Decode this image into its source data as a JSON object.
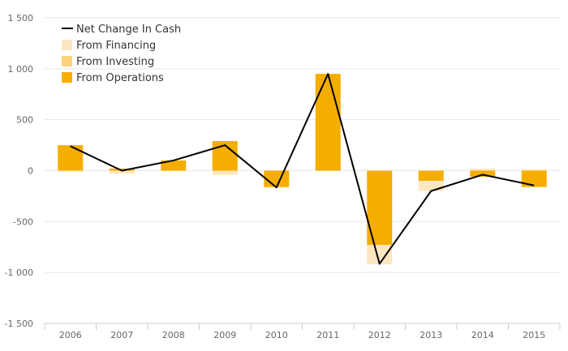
{
  "chart_data": {
    "type": "bar+line",
    "title": "",
    "categories": [
      "2006",
      "2007",
      "2008",
      "2009",
      "2010",
      "2011",
      "2012",
      "2013",
      "2014",
      "2015"
    ],
    "ylim": [
      -1500,
      1500
    ],
    "yticks": [
      {
        "value": 1500,
        "label": "1 500"
      },
      {
        "value": 1000,
        "label": "1 000"
      },
      {
        "value": 500,
        "label": "500"
      },
      {
        "value": 0,
        "label": "0"
      },
      {
        "value": -500,
        "label": "-500"
      },
      {
        "value": -1000,
        "label": "-1 000"
      },
      {
        "value": -1500,
        "label": "-1 500"
      }
    ],
    "grid": true,
    "legend_position": "top-left",
    "series": [
      {
        "name": "From Operations",
        "kind": "bar",
        "color": "#F5AD00",
        "values": [
          250,
          20,
          100,
          290,
          -160,
          950,
          -730,
          -100,
          -60,
          -160
        ]
      },
      {
        "name": "From Investing",
        "kind": "bar",
        "color": "#FCD27A",
        "values": [
          0,
          0,
          0,
          0,
          -5,
          0,
          0,
          0,
          0,
          0
        ]
      },
      {
        "name": "From Financing",
        "kind": "bar",
        "color": "#FDE7C0",
        "values": [
          -10,
          -30,
          0,
          -40,
          0,
          0,
          -190,
          -100,
          20,
          15
        ]
      },
      {
        "name": "Net Change In Cash",
        "kind": "line",
        "color": "#000000",
        "values": [
          240,
          0,
          100,
          250,
          -165,
          950,
          -915,
          -200,
          -40,
          -145
        ]
      }
    ],
    "legend_order": [
      "Net Change In Cash",
      "From Financing",
      "From Investing",
      "From Operations"
    ]
  }
}
